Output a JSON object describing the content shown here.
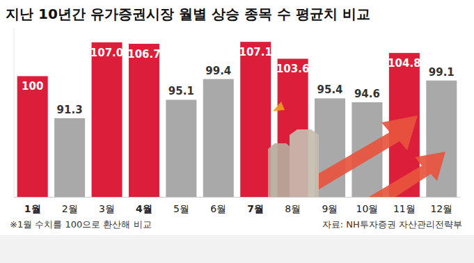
{
  "chart_data": {
    "type": "bar",
    "title": "지난 10년간 유가증권시장 월별 상승 종목 수 평균치 비교",
    "categories": [
      "1월",
      "2월",
      "3월",
      "4월",
      "5월",
      "6월",
      "7월",
      "8월",
      "9월",
      "10월",
      "11월",
      "12월"
    ],
    "values": [
      100,
      91.3,
      107.0,
      106.7,
      95.1,
      99.4,
      107.1,
      103.6,
      95.4,
      94.6,
      104.8,
      99.1
    ],
    "value_labels": [
      "100",
      "91.3",
      "107.0",
      "106.7",
      "95.1",
      "99.4",
      "107.1",
      "103.6",
      "95.4",
      "94.6",
      "104.8",
      "99.1"
    ],
    "colors": [
      "#dc1e3a",
      "#a9a9a9",
      "#dc1e3a",
      "#dc1e3a",
      "#a9a9a9",
      "#a9a9a9",
      "#dc1e3a",
      "#dc1e3a",
      "#a9a9a9",
      "#a9a9a9",
      "#dc1e3a",
      "#a9a9a9"
    ],
    "ylim": [
      75,
      110
    ],
    "tick_labels": "x",
    "data_labels": true,
    "grid": false,
    "annotations": [
      "※1월 수치를 100으로 환산해 비교",
      "자료: NH투자증권 자산관리전략부"
    ]
  }
}
